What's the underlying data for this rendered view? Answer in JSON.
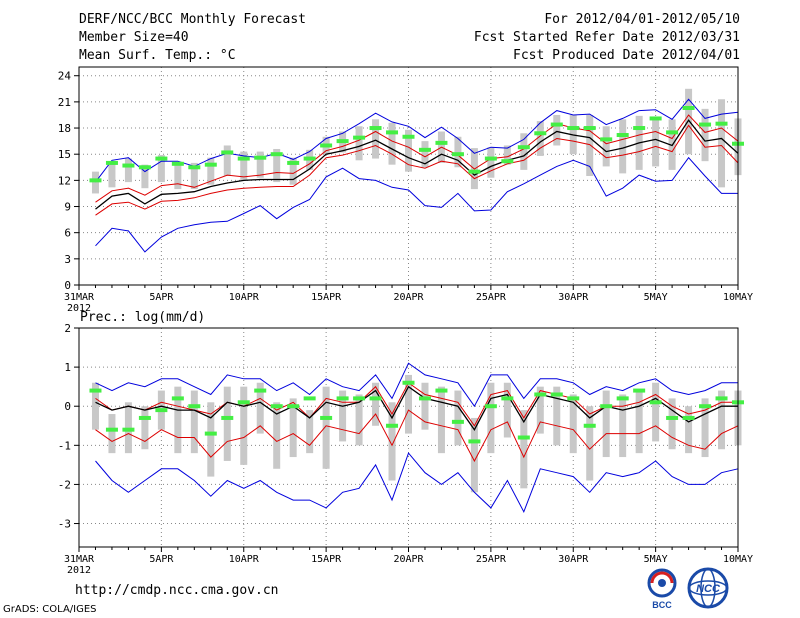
{
  "header": {
    "title": "DERF/NCC/BCC Monthly Forecast",
    "member_size": "Member Size=40",
    "variable": "Mean Surf. Temp.: °C",
    "period": "For 2012/04/01-2012/05/10",
    "started": "Fcst Started Refer Date 2012/03/31",
    "produced": "Fcst Produced Date 2012/04/01"
  },
  "footer": {
    "url": "http://cmdp.ncc.cma.gov.cn",
    "credit": "GrADS: COLA/IGES",
    "logo_bcc": "BCC",
    "logo_ncc": "NCC"
  },
  "colors": {
    "max_min": "#0000dd",
    "quartile": "#dd0000",
    "mean": "#000000",
    "box": "#c8c8c8",
    "observed": "#44ee44"
  },
  "chart_data": [
    {
      "type": "line",
      "panel": "temperature",
      "title": "Mean Surf. Temp.: °C",
      "ylim": [
        0,
        25
      ],
      "yticks": [
        0,
        3,
        6,
        9,
        12,
        15,
        18,
        21,
        24
      ],
      "grid": true,
      "x_tick_positions": [
        0,
        5,
        10,
        15,
        20,
        25,
        30,
        35,
        40
      ],
      "x_tick_labels": [
        "31MAR",
        "5APR",
        "10APR",
        "15APR",
        "20APR",
        "25APR",
        "30APR",
        "5MAY",
        "10MAY"
      ],
      "x_sublabel": "2012",
      "x": [
        1,
        2,
        3,
        4,
        5,
        6,
        7,
        8,
        9,
        10,
        11,
        12,
        13,
        14,
        15,
        16,
        17,
        18,
        19,
        20,
        21,
        22,
        23,
        24,
        25,
        26,
        27,
        28,
        29,
        30,
        31,
        32,
        33,
        34,
        35,
        36,
        37,
        38,
        39,
        40
      ],
      "series": [
        {
          "name": "max",
          "values": [
            11.8,
            14.3,
            14.6,
            13.0,
            14.2,
            14.2,
            13.6,
            14.5,
            15.1,
            14.8,
            14.6,
            15.1,
            14.4,
            15.3,
            16.8,
            17.4,
            18.5,
            19.7,
            18.7,
            18.2,
            16.9,
            18.1,
            16.8,
            15.1,
            15.8,
            15.7,
            16.7,
            18.6,
            20.0,
            19.5,
            19.6,
            18.4,
            19.1,
            20.0,
            20.1,
            19.0,
            21.3,
            19.1,
            19.6,
            19.8
          ]
        },
        {
          "name": "upper_quartile",
          "values": [
            9.5,
            10.8,
            11.1,
            10.3,
            11.4,
            11.6,
            11.2,
            11.9,
            12.6,
            12.4,
            12.6,
            12.9,
            12.8,
            13.9,
            15.4,
            15.9,
            16.6,
            17.6,
            16.5,
            15.8,
            14.7,
            15.8,
            14.9,
            13.3,
            14.5,
            14.7,
            15.6,
            17.1,
            18.5,
            18.0,
            17.7,
            16.2,
            16.7,
            17.2,
            17.6,
            16.8,
            19.5,
            17.5,
            18.0,
            16.5
          ]
        },
        {
          "name": "mean",
          "values": [
            8.7,
            10.2,
            10.5,
            9.3,
            10.4,
            10.5,
            10.7,
            11.3,
            11.7,
            12.0,
            12.1,
            12.1,
            12.1,
            13.3,
            15.0,
            15.4,
            15.9,
            16.6,
            15.6,
            14.6,
            13.9,
            15.0,
            14.3,
            12.6,
            13.6,
            14.3,
            14.8,
            16.4,
            17.6,
            17.2,
            16.9,
            15.3,
            15.7,
            16.3,
            16.7,
            16.0,
            18.9,
            16.5,
            16.8,
            15.1
          ]
        },
        {
          "name": "lower_quartile",
          "values": [
            8.0,
            9.3,
            9.5,
            8.7,
            9.6,
            9.7,
            10.0,
            10.5,
            10.9,
            11.1,
            11.2,
            11.3,
            11.3,
            12.6,
            14.6,
            14.9,
            15.4,
            16.0,
            15.0,
            13.8,
            13.4,
            14.2,
            13.9,
            12.2,
            13.1,
            13.9,
            14.3,
            15.7,
            16.8,
            16.5,
            16.1,
            14.6,
            14.9,
            15.3,
            15.9,
            15.3,
            18.3,
            15.8,
            16.0,
            14.0
          ]
        },
        {
          "name": "min",
          "values": [
            4.5,
            6.5,
            6.2,
            3.8,
            5.5,
            6.5,
            6.9,
            7.2,
            7.3,
            8.2,
            9.1,
            7.6,
            8.9,
            9.8,
            12.4,
            13.4,
            12.2,
            12.0,
            11.2,
            10.9,
            9.1,
            8.9,
            10.5,
            8.5,
            8.6,
            10.7,
            11.6,
            12.6,
            13.6,
            14.3,
            13.6,
            10.2,
            11.1,
            12.6,
            11.9,
            12.0,
            14.6,
            12.5,
            10.5,
            10.5
          ]
        },
        {
          "name": "observed",
          "values": [
            12.0,
            14.0,
            13.7,
            13.5,
            14.5,
            13.9,
            13.5,
            13.8,
            15.2,
            14.5,
            14.6,
            15.0,
            14.0,
            14.5,
            16.0,
            16.5,
            16.9,
            18.0,
            17.5,
            17.0,
            15.5,
            16.3,
            15.0,
            13.0,
            14.5,
            14.2,
            15.8,
            17.4,
            18.4,
            18.0,
            18.0,
            16.7,
            17.2,
            18.0,
            19.1,
            17.5,
            20.3,
            18.4,
            18.5,
            16.2
          ]
        }
      ],
      "box_low": [
        10.5,
        11.2,
        11.8,
        11.1,
        11.8,
        11.0,
        11.0,
        11.5,
        12.5,
        12.0,
        12.3,
        11.8,
        11.5,
        13.2,
        15.0,
        15.2,
        14.3,
        14.5,
        13.8,
        13.0,
        13.5,
        14.0,
        13.5,
        11.0,
        12.3,
        13.8,
        13.2,
        14.8,
        16.0,
        15.0,
        12.5,
        13.6,
        12.8,
        13.2,
        13.6,
        13.2,
        15.0,
        14.2,
        11.2,
        12.6
      ],
      "box_high": [
        13.0,
        14.0,
        14.5,
        13.8,
        14.9,
        14.0,
        14.0,
        14.6,
        16.0,
        15.3,
        15.3,
        15.6,
        14.6,
        15.5,
        17.0,
        17.6,
        18.2,
        19.0,
        18.6,
        17.8,
        16.5,
        17.6,
        17.0,
        15.7,
        15.8,
        16.0,
        17.4,
        18.8,
        19.5,
        19.5,
        19.5,
        18.2,
        19.0,
        19.4,
        19.2,
        19.0,
        22.5,
        20.2,
        21.3,
        19.1
      ]
    },
    {
      "type": "line",
      "panel": "precipitation",
      "title": "Prec.: log(mm/d)",
      "ylim": [
        -3.6,
        2
      ],
      "yticks": [
        -3,
        -2,
        -1,
        0,
        1,
        2
      ],
      "grid": true,
      "x_tick_positions": [
        0,
        5,
        10,
        15,
        20,
        25,
        30,
        35,
        40
      ],
      "x_tick_labels": [
        "31MAR",
        "5APR",
        "10APR",
        "15APR",
        "20APR",
        "25APR",
        "30APR",
        "5MAY",
        "10MAY"
      ],
      "x_sublabel": "2012",
      "x": [
        1,
        2,
        3,
        4,
        5,
        6,
        7,
        8,
        9,
        10,
        11,
        12,
        13,
        14,
        15,
        16,
        17,
        18,
        19,
        20,
        21,
        22,
        23,
        24,
        25,
        26,
        27,
        28,
        29,
        30,
        31,
        32,
        33,
        34,
        35,
        36,
        37,
        38,
        39,
        40
      ],
      "series": [
        {
          "name": "max",
          "values": [
            0.6,
            0.4,
            0.6,
            0.5,
            0.7,
            0.7,
            0.5,
            0.3,
            0.8,
            0.7,
            0.7,
            0.4,
            0.6,
            0.3,
            0.7,
            0.5,
            0.4,
            0.8,
            0.2,
            1.1,
            0.8,
            0.7,
            0.6,
            0.0,
            0.8,
            0.8,
            0.2,
            0.7,
            0.7,
            0.6,
            0.3,
            0.5,
            0.4,
            0.6,
            0.7,
            0.4,
            0.3,
            0.4,
            0.6,
            0.6
          ]
        },
        {
          "name": "upper_quartile",
          "values": [
            0.2,
            -0.1,
            0.0,
            -0.1,
            0.1,
            0.0,
            -0.1,
            -0.2,
            0.1,
            0.0,
            0.2,
            -0.1,
            0.1,
            -0.3,
            0.2,
            0.1,
            0.1,
            0.5,
            -0.2,
            0.6,
            0.3,
            0.2,
            0.1,
            -0.5,
            0.3,
            0.4,
            -0.3,
            0.4,
            0.3,
            0.2,
            -0.2,
            0.0,
            0.0,
            0.1,
            0.3,
            0.0,
            -0.2,
            -0.1,
            0.1,
            0.1
          ]
        },
        {
          "name": "mean",
          "values": [
            0.1,
            -0.1,
            0.0,
            -0.1,
            0.0,
            -0.1,
            -0.1,
            -0.3,
            0.1,
            0.0,
            0.1,
            -0.2,
            0.0,
            -0.3,
            0.1,
            0.0,
            0.1,
            0.4,
            -0.3,
            0.5,
            0.2,
            0.1,
            0.0,
            -0.6,
            0.2,
            0.3,
            -0.4,
            0.3,
            0.2,
            0.1,
            -0.3,
            0.0,
            -0.1,
            0.0,
            0.2,
            -0.1,
            -0.4,
            -0.2,
            0.0,
            0.0
          ]
        },
        {
          "name": "lower_quartile",
          "values": [
            -0.6,
            -0.9,
            -0.7,
            -0.9,
            -0.6,
            -0.8,
            -0.8,
            -1.3,
            -0.9,
            -0.8,
            -0.5,
            -0.9,
            -0.7,
            -1.0,
            -0.5,
            -0.6,
            -0.7,
            -0.2,
            -1.0,
            -0.1,
            -0.4,
            -0.5,
            -0.6,
            -1.4,
            -0.6,
            -0.4,
            -1.3,
            -0.4,
            -0.5,
            -0.6,
            -1.1,
            -0.7,
            -0.7,
            -0.7,
            -0.5,
            -0.8,
            -1.0,
            -1.1,
            -0.7,
            -0.5
          ]
        },
        {
          "name": "min",
          "values": [
            -1.4,
            -1.9,
            -2.2,
            -1.9,
            -1.6,
            -1.6,
            -1.9,
            -2.3,
            -1.9,
            -2.1,
            -1.9,
            -2.2,
            -2.4,
            -2.4,
            -2.6,
            -2.2,
            -2.1,
            -1.5,
            -2.4,
            -1.2,
            -1.7,
            -2.0,
            -1.7,
            -2.2,
            -2.6,
            -1.9,
            -2.7,
            -1.6,
            -1.7,
            -1.8,
            -2.2,
            -1.7,
            -1.8,
            -1.7,
            -1.4,
            -1.8,
            -2.0,
            -2.0,
            -1.7,
            -1.6
          ]
        },
        {
          "name": "observed",
          "values": [
            0.4,
            -0.6,
            -0.6,
            -0.3,
            -0.1,
            0.2,
            0.0,
            -0.7,
            -0.3,
            0.1,
            0.4,
            0.0,
            0.0,
            0.2,
            -0.3,
            0.2,
            0.2,
            0.2,
            -0.5,
            0.6,
            0.2,
            0.4,
            -0.4,
            -0.9,
            0.0,
            0.2,
            -0.8,
            0.3,
            0.3,
            0.2,
            -0.5,
            0.0,
            0.2,
            0.4,
            0.1,
            -0.3,
            -0.3,
            0.0,
            0.2,
            0.1
          ]
        }
      ],
      "box_low": [
        -0.6,
        -1.2,
        -1.2,
        -1.1,
        -0.6,
        -1.2,
        -1.2,
        -1.8,
        -1.4,
        -1.5,
        -0.7,
        -1.6,
        -1.3,
        -1.2,
        -1.6,
        -0.9,
        -1.0,
        -0.5,
        -1.9,
        -0.7,
        -0.6,
        -1.2,
        -1.0,
        -2.2,
        -1.2,
        -0.8,
        -2.1,
        -0.7,
        -1.0,
        -1.2,
        -1.9,
        -1.3,
        -1.3,
        -1.2,
        -0.9,
        -1.1,
        -1.2,
        -1.3,
        -1.1,
        -1.0
      ],
      "box_high": [
        0.6,
        -0.2,
        0.1,
        0.0,
        0.4,
        0.5,
        0.4,
        0.1,
        0.5,
        0.5,
        0.6,
        0.1,
        0.2,
        -0.1,
        0.5,
        0.4,
        0.3,
        0.6,
        0.1,
        0.8,
        0.6,
        0.5,
        0.4,
        -0.3,
        0.6,
        0.6,
        -0.1,
        0.5,
        0.5,
        0.3,
        0.0,
        0.4,
        0.3,
        0.4,
        0.6,
        0.2,
        0.0,
        0.2,
        0.4,
        0.4
      ]
    }
  ]
}
